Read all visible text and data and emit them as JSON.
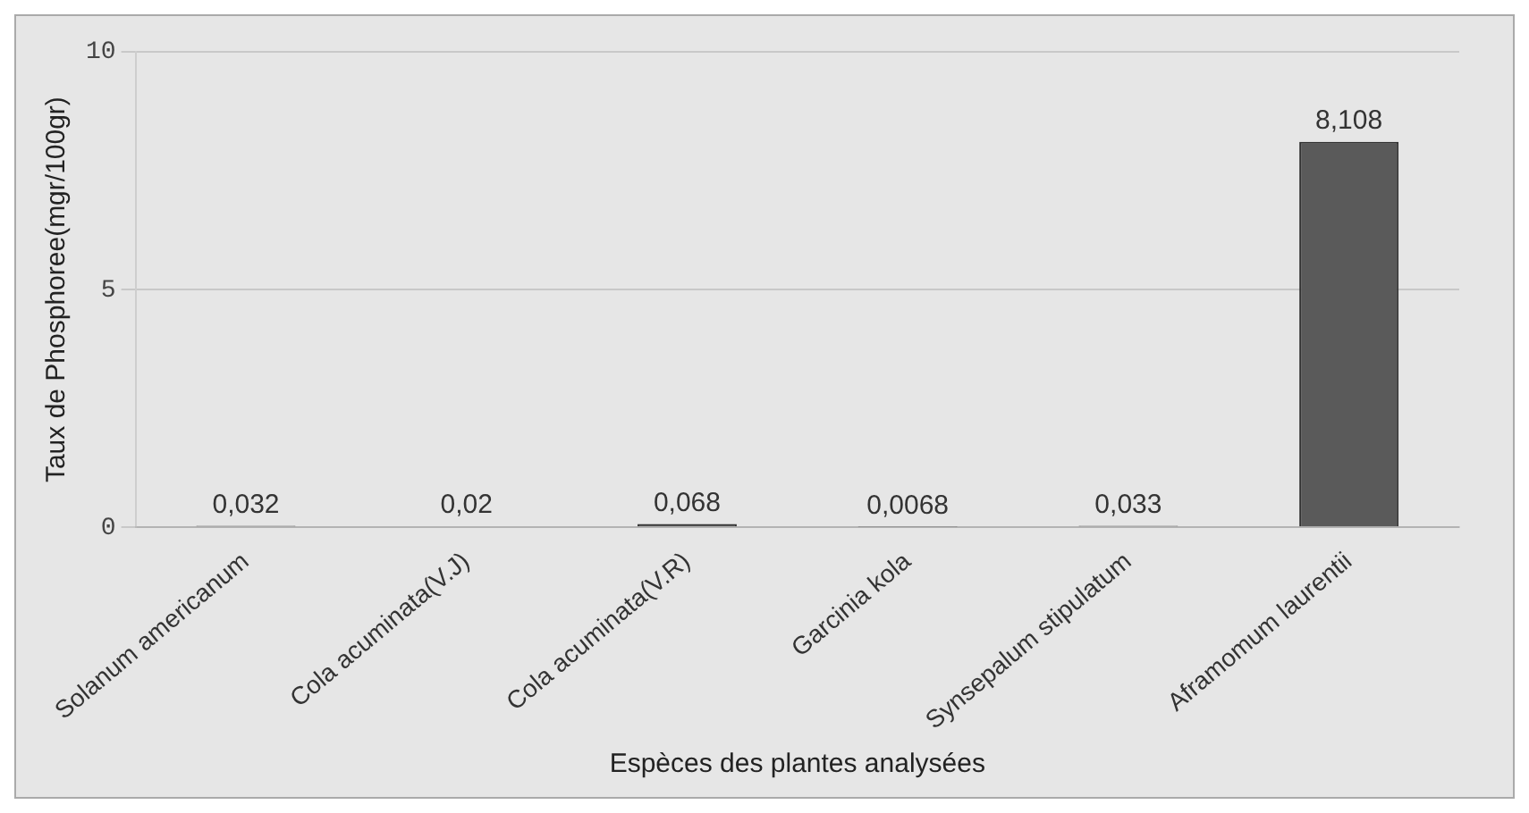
{
  "chart_data": {
    "type": "bar",
    "xlabel": "Espèces des plantes analysées",
    "ylabel": "Taux de Phosphoree(mgr/100gr)",
    "categories": [
      "Solanum americanum",
      "Cola acuminata(V.J)",
      "Cola acuminata(V.R)",
      "Garcinia kola",
      "Synsepalum stipulatum",
      "Aframomum laurentii"
    ],
    "values": [
      0.032,
      0.02,
      0.068,
      0.0068,
      0.033,
      8.108
    ],
    "value_labels": [
      "0,032",
      "0,02",
      "0,068",
      "0,0068",
      "0,033",
      "8,108"
    ],
    "color": "#5a5a5a",
    "ylim": [
      0,
      10
    ],
    "yticks": [
      0,
      5,
      10
    ],
    "grid": "y",
    "legend": false
  }
}
